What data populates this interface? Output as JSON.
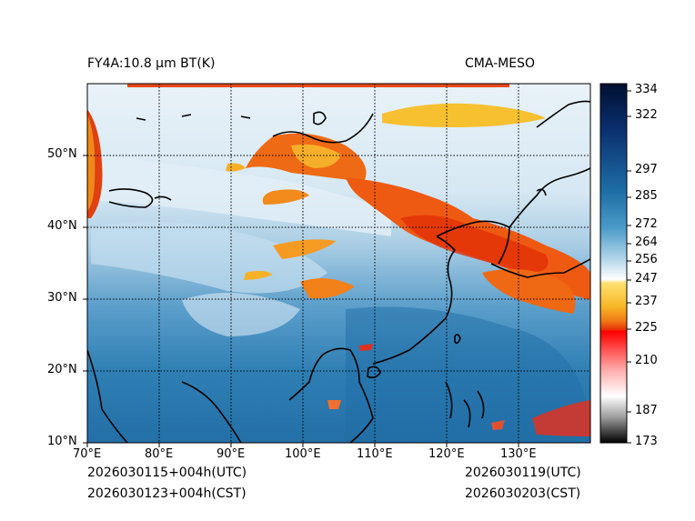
{
  "header": {
    "left_title": "FY4A:10.8 μm BT(K)",
    "right_title": "CMA-MESO"
  },
  "footer": {
    "init_utc": "2026030115+004h(UTC)",
    "init_cst": "2026030123+004h(CST)",
    "valid_utc": "2026030119(UTC)",
    "valid_cst": "2026030203(CST)"
  },
  "map": {
    "lon_labels": [
      "70°E",
      "80°E",
      "90°E",
      "100°E",
      "110°E",
      "120°E",
      "130°E"
    ],
    "lat_labels": [
      "50°N",
      "40°N",
      "30°N",
      "20°N",
      "10°N"
    ],
    "lon_range": [
      70,
      140
    ],
    "lat_range": [
      10,
      60
    ]
  },
  "colorbar": {
    "labels": [
      "334",
      "322",
      "297",
      "285",
      "272",
      "264",
      "256",
      "247",
      "237",
      "225",
      "210",
      "187",
      "173"
    ],
    "range": [
      173,
      336
    ]
  },
  "colors": {
    "cold_cloud": "#e84010",
    "mid_cloud": "#f6a820",
    "high_cloud_white": "#eef5fa",
    "ocean_warm": "#2e82b6",
    "land_mid": "#7fb7d8"
  }
}
